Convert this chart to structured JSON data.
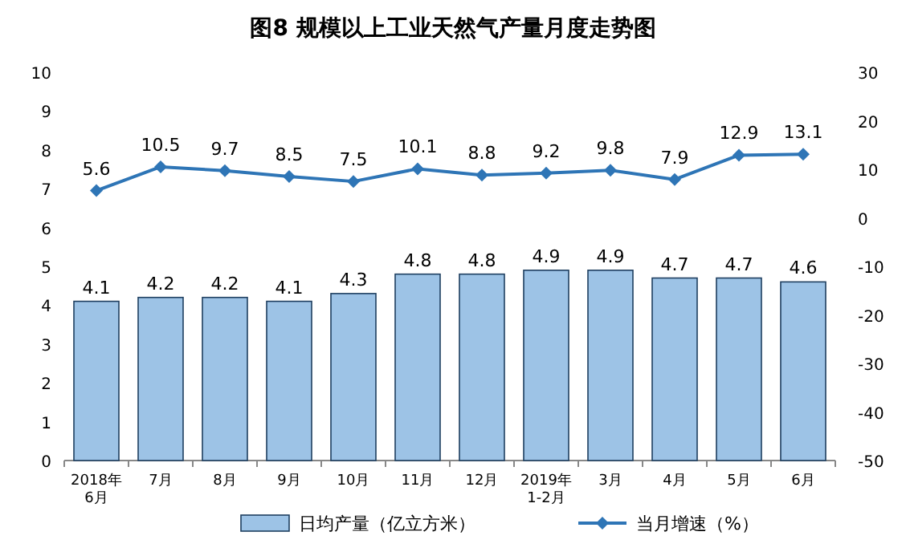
{
  "chart_data": {
    "type": "bar",
    "title": "图8 规模以上工业天然气产量月度走势图",
    "categories": [
      "2018年\n6月",
      "7月",
      "8月",
      "9月",
      "10月",
      "11月",
      "12月",
      "2019年\n1-2月",
      "3月",
      "4月",
      "5月",
      "6月"
    ],
    "series": [
      {
        "name": "日均产量（亿立方米）",
        "color": "#9dc3e6",
        "values": [
          4.1,
          4.2,
          4.2,
          4.1,
          4.3,
          4.8,
          4.8,
          4.9,
          4.9,
          4.7,
          4.7,
          4.6
        ]
      },
      {
        "name": "当月增速（%）",
        "type": "line",
        "axis": "y2",
        "color": "#2e75b6",
        "values": [
          5.6,
          10.5,
          9.7,
          8.5,
          7.5,
          10.1,
          8.8,
          9.2,
          9.8,
          7.9,
          12.9,
          13.1
        ]
      }
    ],
    "ylim": [
      0,
      10
    ],
    "yticks": [
      0,
      1,
      2,
      3,
      4,
      5,
      6,
      7,
      8,
      9,
      10
    ],
    "y2lim": [
      -50,
      30
    ],
    "y2ticks": [
      -50,
      -40,
      -30,
      -20,
      -10,
      0,
      10,
      20,
      30
    ],
    "data_labels": true,
    "legend": "bottom",
    "marker": "diamond",
    "grid": false
  }
}
